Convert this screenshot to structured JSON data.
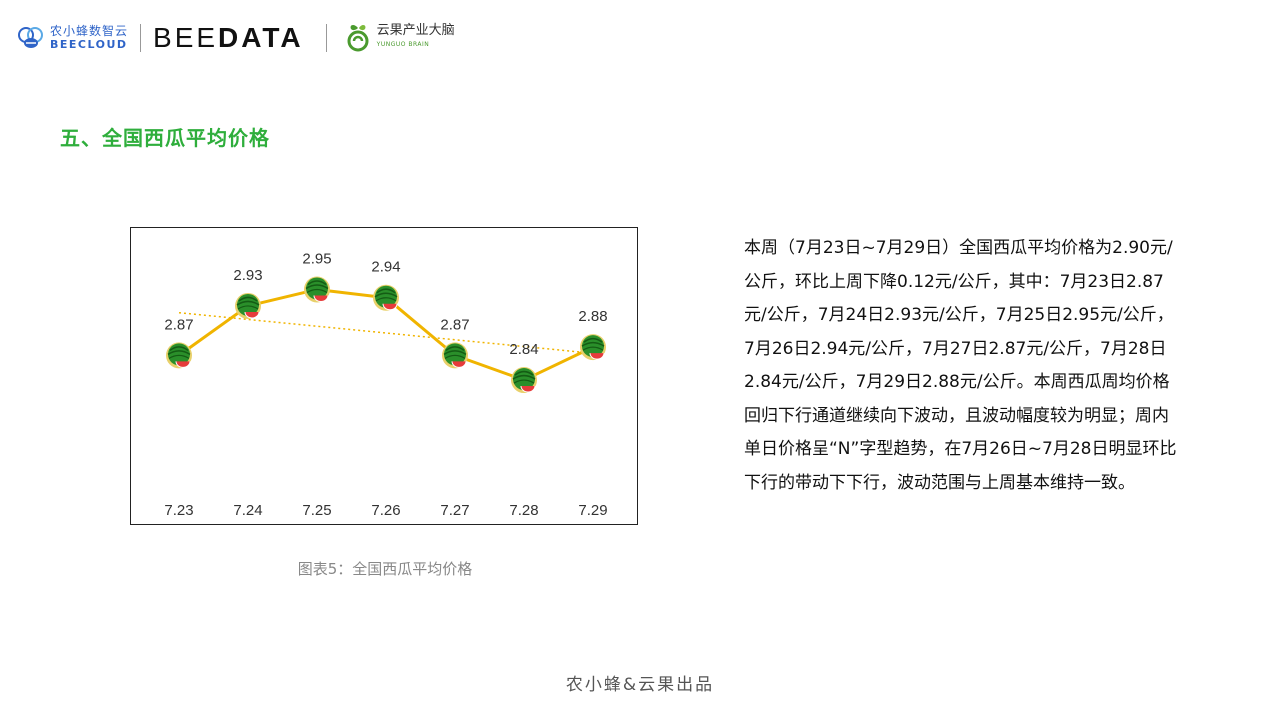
{
  "header": {
    "brand1_cn": "农小蜂数智云",
    "brand1_en": "BEECLOUD",
    "brand2_part1": "BEE",
    "brand2_part2": "DATA",
    "brand3_cn": "云果产业大脑",
    "brand3_en": "YUNGUO BRAIN"
  },
  "section_title": "五、全国西瓜平均价格",
  "chart_data": {
    "type": "line",
    "categories": [
      "7.23",
      "7.24",
      "7.25",
      "7.26",
      "7.27",
      "7.28",
      "7.29"
    ],
    "values": [
      2.87,
      2.93,
      2.95,
      2.94,
      2.87,
      2.84,
      2.88
    ],
    "data_labels": [
      "2.87",
      "2.93",
      "2.95",
      "2.94",
      "2.87",
      "2.84",
      "2.88"
    ],
    "trendline": true,
    "marker": "watermelon-icon",
    "line_color": "#f0b400",
    "trend_color": "#f0b400",
    "ylim": [
      2.8,
      2.97
    ],
    "grid": false,
    "title": "",
    "xlabel": "",
    "ylabel": ""
  },
  "caption": "图表5：全国西瓜平均价格",
  "body_text": "本周（7月23日~7月29日）全国西瓜平均价格为2.90元/公斤，环比上周下降0.12元/公斤，其中：7月23日2.87元/公斤，7月24日2.93元/公斤，7月25日2.95元/公斤，7月26日2.94元/公斤，7月27日2.87元/公斤，7月28日2.84元/公斤，7月29日2.88元/公斤。本周西瓜周均价格回归下行通道继续向下波动，且波动幅度较为明显；周内单日价格呈“N”字型趋势，在7月26日~7月28日明显环比下行的带动下下行，波动范围与上周基本维持一致。",
  "footer": "农小蜂&云果出品"
}
